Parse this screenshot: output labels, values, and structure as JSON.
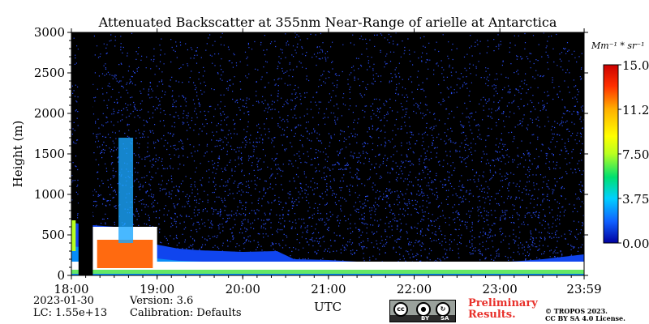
{
  "chart_data": {
    "type": "heatmap",
    "title": "Attenuated Backscatter at 355nm Near-Range of arielle at Antarctica",
    "ylabel": "Height (m)",
    "xlabel": "UTC",
    "x_ticks": [
      "18:00",
      "19:00",
      "20:00",
      "21:00",
      "22:00",
      "23:00",
      "23:59"
    ],
    "y_ticks": [
      "0",
      "500",
      "1000",
      "1500",
      "2000",
      "2500",
      "3000"
    ],
    "xlim_hours": [
      18.0,
      23.983
    ],
    "ylim": [
      0,
      3000
    ],
    "colorbar": {
      "unit_label": "Mm⁻¹ * sr⁻¹",
      "ticks": [
        "15.00",
        "11.25",
        "7.50",
        "3.75",
        "0.00"
      ],
      "range": [
        0.0,
        15.0
      ],
      "colormap": [
        "#0000a0",
        "#1060ff",
        "#00d0ff",
        "#00e070",
        "#b8ff20",
        "#ffff00",
        "#ffb000",
        "#ff3000",
        "#cc0000"
      ]
    },
    "data_gap": {
      "from": "18:05",
      "to": "18:15"
    },
    "boundary_layer_top_m": [
      [
        18.0,
        650
      ],
      [
        18.25,
        620
      ],
      [
        18.5,
        600
      ],
      [
        18.75,
        520
      ],
      [
        19.0,
        380
      ],
      [
        19.25,
        330
      ],
      [
        19.5,
        310
      ],
      [
        20.0,
        290
      ],
      [
        20.4,
        300
      ],
      [
        20.6,
        200
      ],
      [
        21.0,
        190
      ],
      [
        21.5,
        160
      ],
      [
        22.0,
        160
      ],
      [
        22.5,
        140
      ],
      [
        23.0,
        160
      ],
      [
        23.5,
        200
      ],
      [
        23.983,
        260
      ]
    ]
  },
  "footer": {
    "date": "2023-01-30",
    "lc": "LC: 1.55e+13",
    "version": "Version: 3.6",
    "calibration": "Calibration: Defaults",
    "prelim_line1": "Preliminary",
    "prelim_line2": "Results.",
    "copyright_line1": "© TROPOS 2023.",
    "copyright_line2": "CC BY SA 4.0 License.",
    "cc_labels": [
      "cc",
      "BY",
      "SA"
    ]
  }
}
